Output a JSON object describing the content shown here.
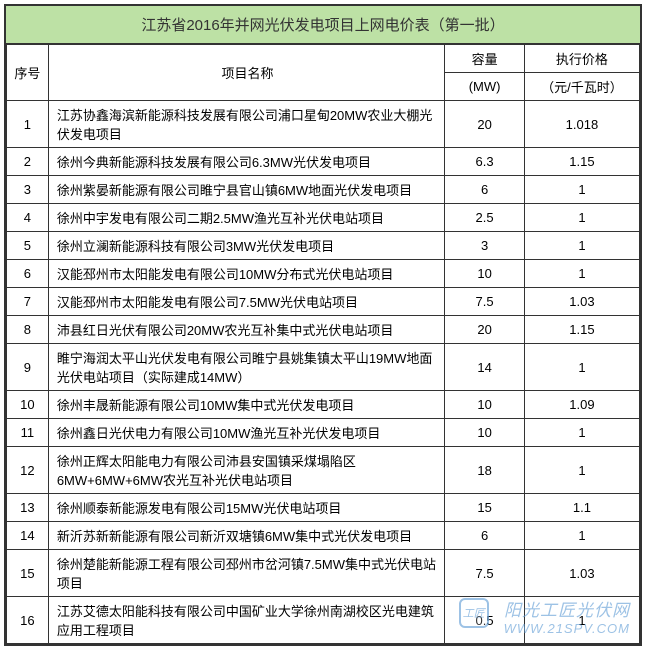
{
  "title": "江苏省2016年并网光伏发电项目上网电价表（第一批）",
  "headers": {
    "seq": "序号",
    "name": "项目名称",
    "capacity": "容量",
    "capacity_unit": "(MW)",
    "price": "执行价格",
    "price_unit": "（元/千瓦时）"
  },
  "rows": [
    {
      "seq": "1",
      "name": "江苏协鑫海滨新能源科技发展有限公司浦口星甸20MW农业大棚光伏发电项目",
      "capacity": "20",
      "price": "1.018"
    },
    {
      "seq": "2",
      "name": "徐州今典新能源科技发展有限公司6.3MW光伏发电项目",
      "capacity": "6.3",
      "price": "1.15"
    },
    {
      "seq": "3",
      "name": "徐州紫晏新能源有限公司睢宁县官山镇6MW地面光伏发电项目",
      "capacity": "6",
      "price": "1"
    },
    {
      "seq": "4",
      "name": "徐州中宇发电有限公司二期2.5MW渔光互补光伏电站项目",
      "capacity": "2.5",
      "price": "1"
    },
    {
      "seq": "5",
      "name": "徐州立澜新能源科技有限公司3MW光伏发电项目",
      "capacity": "3",
      "price": "1"
    },
    {
      "seq": "6",
      "name": "汉能邳州市太阳能发电有限公司10MW分布式光伏电站项目",
      "capacity": "10",
      "price": "1"
    },
    {
      "seq": "7",
      "name": "汉能邳州市太阳能发电有限公司7.5MW光伏电站项目",
      "capacity": "7.5",
      "price": "1.03"
    },
    {
      "seq": "8",
      "name": "沛县红日光伏有限公司20MW农光互补集中式光伏电站项目",
      "capacity": "20",
      "price": "1.15"
    },
    {
      "seq": "9",
      "name": "睢宁海润太平山光伏发电有限公司睢宁县姚集镇太平山19MW地面光伏电站项目（实际建成14MW）",
      "capacity": "14",
      "price": "1"
    },
    {
      "seq": "10",
      "name": "徐州丰晟新能源有限公司10MW集中式光伏发电项目",
      "capacity": "10",
      "price": "1.09"
    },
    {
      "seq": "11",
      "name": "徐州鑫日光伏电力有限公司10MW渔光互补光伏发电项目",
      "capacity": "10",
      "price": "1"
    },
    {
      "seq": "12",
      "name": "徐州正辉太阳能电力有限公司沛县安国镇采煤塌陷区6MW+6MW+6MW农光互补光伏电站项目",
      "capacity": "18",
      "price": "1"
    },
    {
      "seq": "13",
      "name": "徐州顺泰新能源发电有限公司15MW光伏电站项目",
      "capacity": "15",
      "price": "1.1"
    },
    {
      "seq": "14",
      "name": "新沂苏新新能源有限公司新沂双塘镇6MW集中式光伏发电项目",
      "capacity": "6",
      "price": "1"
    },
    {
      "seq": "15",
      "name": "徐州楚能新能源工程有限公司邳州市岔河镇7.5MW集中式光伏电站项目",
      "capacity": "7.5",
      "price": "1.03"
    },
    {
      "seq": "16",
      "name": "江苏艾德太阳能科技有限公司中国矿业大学徐州南湖校区光电建筑应用工程项目",
      "capacity": "0.5",
      "price": "1"
    }
  ],
  "watermark": {
    "icon_text": "工匠",
    "text": "阳光工匠光伏网",
    "url": "WWW.21SPV.COM"
  },
  "colors": {
    "title_bg": "#bde1a5",
    "border": "#333333",
    "watermark": "#6aa3d8"
  }
}
